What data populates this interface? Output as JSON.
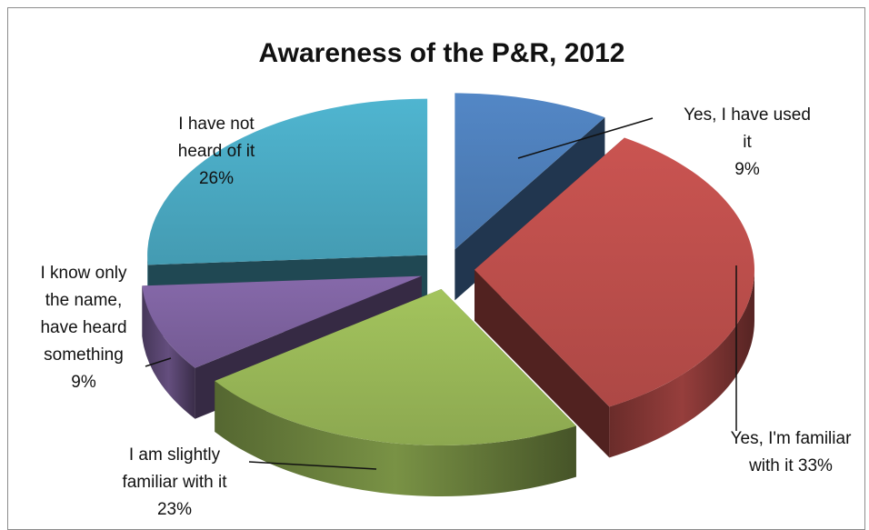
{
  "chart_data": {
    "type": "pie",
    "title": "Awareness of the P&R, 2012",
    "style": "3d-exploded",
    "slices": [
      {
        "label_lines": [
          "Yes, I have used",
          "it",
          "9%"
        ],
        "value": 9,
        "color": "#4F81BD"
      },
      {
        "label_lines": [
          "Yes, I'm familiar",
          "with it 33%"
        ],
        "value": 33,
        "color": "#C0504D"
      },
      {
        "label_lines": [
          "I am slightly",
          "familiar with it",
          "23%"
        ],
        "value": 23,
        "color": "#9BBB59"
      },
      {
        "label_lines": [
          "I know only",
          "the name,",
          "have heard",
          "something",
          "9%"
        ],
        "value": 9,
        "color": "#8064A2"
      },
      {
        "label_lines": [
          "I have not",
          "heard of it",
          "26%"
        ],
        "value": 26,
        "color": "#4BACC6"
      }
    ]
  }
}
